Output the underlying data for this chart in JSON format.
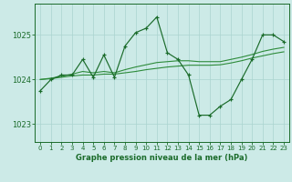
{
  "bg_color": "#cceae7",
  "grid_color": "#aad4d0",
  "line_color_main": "#1a6b2a",
  "line_color_smooth": "#2d8b3a",
  "title": "Graphe pression niveau de la mer (hPa)",
  "xlim": [
    -0.5,
    23.5
  ],
  "ylim": [
    1022.6,
    1025.7
  ],
  "yticks": [
    1023,
    1024,
    1025
  ],
  "xticks": [
    0,
    1,
    2,
    3,
    4,
    5,
    6,
    7,
    8,
    9,
    10,
    11,
    12,
    13,
    14,
    15,
    16,
    17,
    18,
    19,
    20,
    21,
    22,
    23
  ],
  "series1_x": [
    0,
    1,
    2,
    3,
    4,
    5,
    6,
    7,
    8,
    9,
    10,
    11,
    12,
    13,
    14,
    15,
    16,
    17,
    18,
    19,
    20,
    21,
    22,
    23
  ],
  "series1_y": [
    1023.75,
    1024.0,
    1024.1,
    1024.1,
    1024.45,
    1024.05,
    1024.55,
    1024.05,
    1024.75,
    1025.05,
    1025.15,
    1025.4,
    1024.6,
    1024.45,
    1024.1,
    1023.2,
    1023.2,
    1023.4,
    1023.55,
    1024.0,
    1024.45,
    1025.0,
    1025.0,
    1024.85
  ],
  "series2_x": [
    0,
    1,
    2,
    3,
    4,
    5,
    6,
    7,
    8,
    9,
    10,
    11,
    12,
    13,
    14,
    15,
    16,
    17,
    18,
    19,
    20,
    21,
    22,
    23
  ],
  "series2_y": [
    1024.0,
    1024.02,
    1024.05,
    1024.08,
    1024.1,
    1024.1,
    1024.12,
    1024.12,
    1024.15,
    1024.18,
    1024.22,
    1024.25,
    1024.28,
    1024.3,
    1024.32,
    1024.32,
    1024.32,
    1024.33,
    1024.37,
    1024.42,
    1024.48,
    1024.53,
    1024.58,
    1024.62
  ],
  "series3_x": [
    0,
    1,
    2,
    3,
    4,
    5,
    6,
    7,
    8,
    9,
    10,
    11,
    12,
    13,
    14,
    15,
    16,
    17,
    18,
    19,
    20,
    21,
    22,
    23
  ],
  "series3_y": [
    1024.0,
    1024.03,
    1024.07,
    1024.12,
    1024.18,
    1024.15,
    1024.18,
    1024.15,
    1024.22,
    1024.28,
    1024.33,
    1024.38,
    1024.4,
    1024.42,
    1024.42,
    1024.4,
    1024.4,
    1024.4,
    1024.45,
    1024.5,
    1024.56,
    1024.63,
    1024.68,
    1024.72
  ]
}
